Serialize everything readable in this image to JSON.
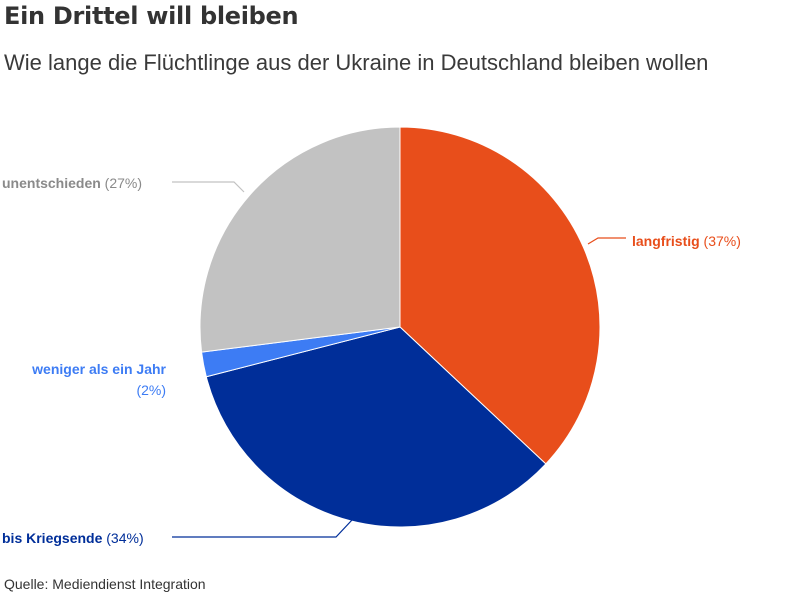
{
  "header": {
    "title": "Ein Drittel will bleiben",
    "subtitle": "Wie lange die Flüchtlinge aus der Ukraine in Deutschland bleiben wollen"
  },
  "footer": {
    "source": "Quelle: Mediendienst Integration"
  },
  "chart_data": {
    "type": "pie",
    "title": "Ein Drittel will bleiben",
    "subtitle": "Wie lange die Flüchtlinge aus der Ukraine in Deutschland bleiben wollen",
    "start": "12 o'clock",
    "direction": "clockwise",
    "slices": [
      {
        "label": "langfristig",
        "value": 37,
        "value_label": "(37%)",
        "color": "#e84e1b"
      },
      {
        "label": "bis Kriegsende",
        "value": 34,
        "value_label": "(34%)",
        "color": "#002e99"
      },
      {
        "label": "weniger als ein Jahr",
        "value": 2,
        "value_label": "(2%)",
        "color": "#3d7cf4"
      },
      {
        "label": "unentschieden",
        "value": 27,
        "value_label": "(27%)",
        "color": "#c2c2c2"
      }
    ]
  }
}
